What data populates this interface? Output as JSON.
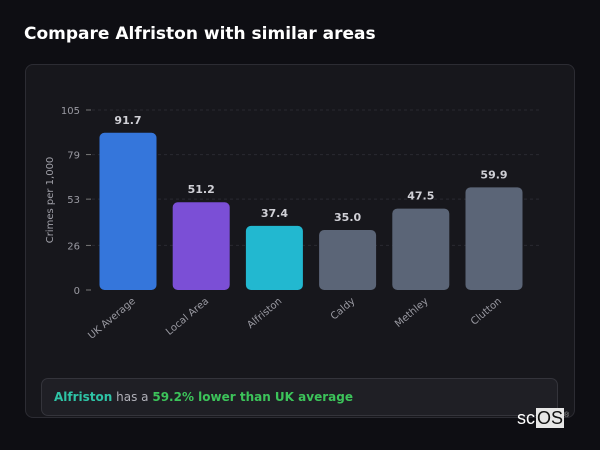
{
  "title": "Compare Alfriston with similar areas",
  "chart_data": {
    "type": "bar",
    "categories": [
      "UK Average",
      "Local Area",
      "Alfriston",
      "Caldy",
      "Methley",
      "Clutton"
    ],
    "values": [
      91.7,
      51.2,
      37.4,
      35.0,
      47.5,
      59.9
    ],
    "value_labels": [
      "91.7",
      "51.2",
      "37.4",
      "35.0",
      "47.5",
      "59.9"
    ],
    "colors": [
      "#3576db",
      "#7b4fd6",
      "#22b8d0",
      "#5b6577",
      "#5b6577",
      "#5b6577"
    ],
    "ylabel": "Crimes per 1,000",
    "ylim": [
      0,
      105
    ],
    "yticks": [
      0,
      26,
      53,
      79,
      105
    ],
    "grid": true
  },
  "summary": {
    "area": "Alfriston",
    "middle": " has a ",
    "stat": "59.2% lower than UK average"
  },
  "logo": {
    "text_a": "sc",
    "text_b": "OS",
    "mark": "®"
  }
}
